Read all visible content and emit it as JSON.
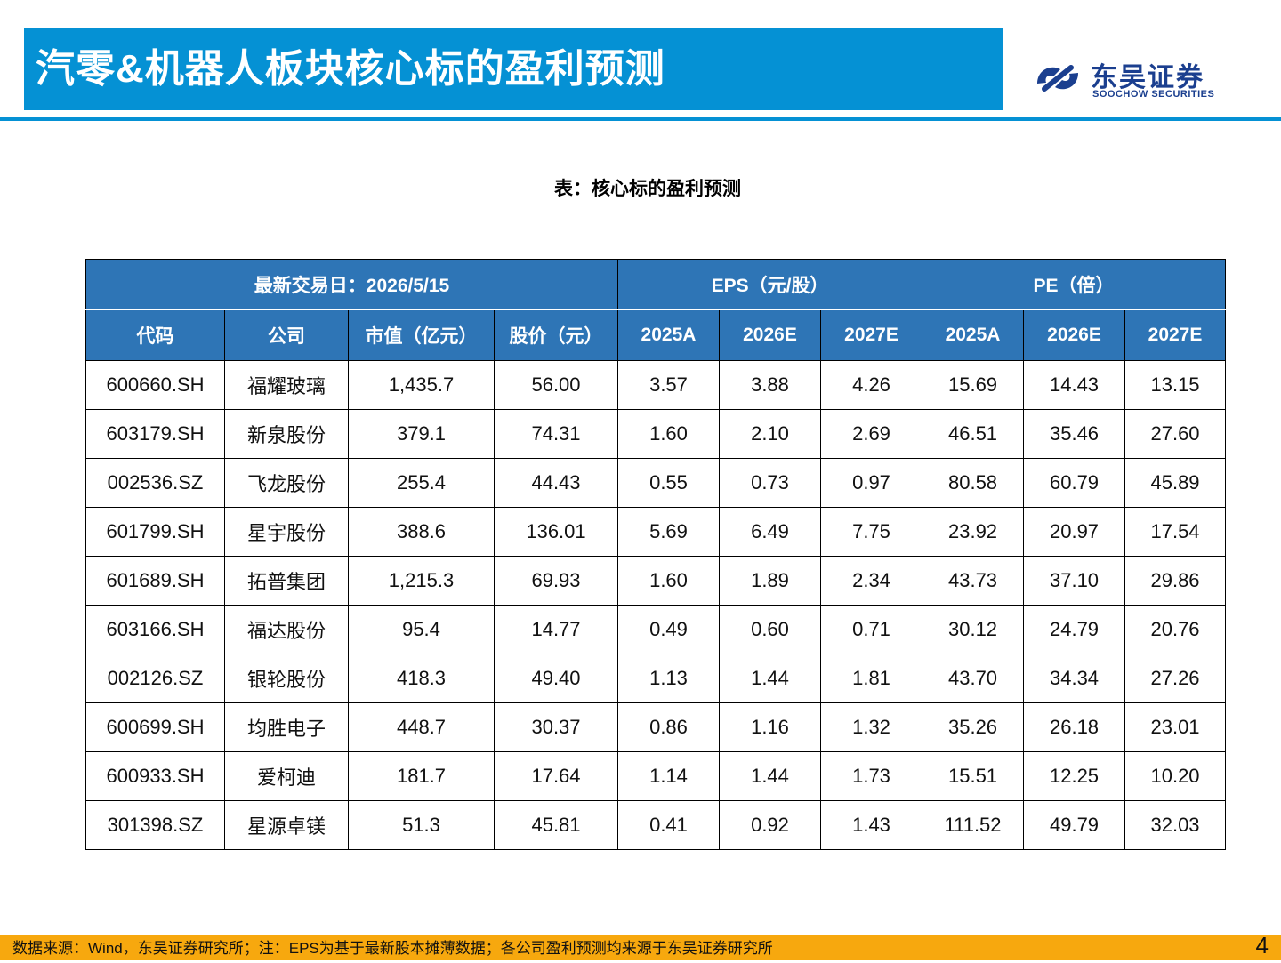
{
  "header": {
    "title": "汽零&机器人板块核心标的盈利预测",
    "logo_cn": "东吴证券",
    "logo_en": "SOOCHOW SECURITIES"
  },
  "caption": "表：核心标的盈利预测",
  "table": {
    "group_headers": [
      "最新交易日：2026/5/15",
      "EPS（元/股）",
      "PE（倍）"
    ],
    "columns": [
      "代码",
      "公司",
      "市值（亿元）",
      "股价（元）",
      "2025A",
      "2026E",
      "2027E",
      "2025A",
      "2026E",
      "2027E"
    ],
    "rows": [
      [
        "600660.SH",
        "福耀玻璃",
        "1,435.7",
        "56.00",
        "3.57",
        "3.88",
        "4.26",
        "15.69",
        "14.43",
        "13.15"
      ],
      [
        "603179.SH",
        "新泉股份",
        "379.1",
        "74.31",
        "1.60",
        "2.10",
        "2.69",
        "46.51",
        "35.46",
        "27.60"
      ],
      [
        "002536.SZ",
        "飞龙股份",
        "255.4",
        "44.43",
        "0.55",
        "0.73",
        "0.97",
        "80.58",
        "60.79",
        "45.89"
      ],
      [
        "601799.SH",
        "星宇股份",
        "388.6",
        "136.01",
        "5.69",
        "6.49",
        "7.75",
        "23.92",
        "20.97",
        "17.54"
      ],
      [
        "601689.SH",
        "拓普集团",
        "1,215.3",
        "69.93",
        "1.60",
        "1.89",
        "2.34",
        "43.73",
        "37.10",
        "29.86"
      ],
      [
        "603166.SH",
        "福达股份",
        "95.4",
        "14.77",
        "0.49",
        "0.60",
        "0.71",
        "30.12",
        "24.79",
        "20.76"
      ],
      [
        "002126.SZ",
        "银轮股份",
        "418.3",
        "49.40",
        "1.13",
        "1.44",
        "1.81",
        "43.70",
        "34.34",
        "27.26"
      ],
      [
        "600699.SH",
        "均胜电子",
        "448.7",
        "30.37",
        "0.86",
        "1.16",
        "1.32",
        "35.26",
        "26.18",
        "23.01"
      ],
      [
        "600933.SH",
        "爱柯迪",
        "181.7",
        "17.64",
        "1.14",
        "1.44",
        "1.73",
        "15.51",
        "12.25",
        "10.20"
      ],
      [
        "301398.SZ",
        "星源卓镁",
        "51.3",
        "45.81",
        "0.41",
        "0.92",
        "1.43",
        "111.52",
        "49.79",
        "32.03"
      ]
    ]
  },
  "footer": {
    "source": "数据来源：Wind，东吴证券研究所；注：EPS为基于最新股本摊薄数据；各公司盈利预测均来源于东吴证券研究所",
    "page_number": "4"
  },
  "colors": {
    "title_bar": "#0591d4",
    "table_header": "#2e75b6",
    "footer_bar": "#f7a80e",
    "logo": "#1b3f8f"
  }
}
